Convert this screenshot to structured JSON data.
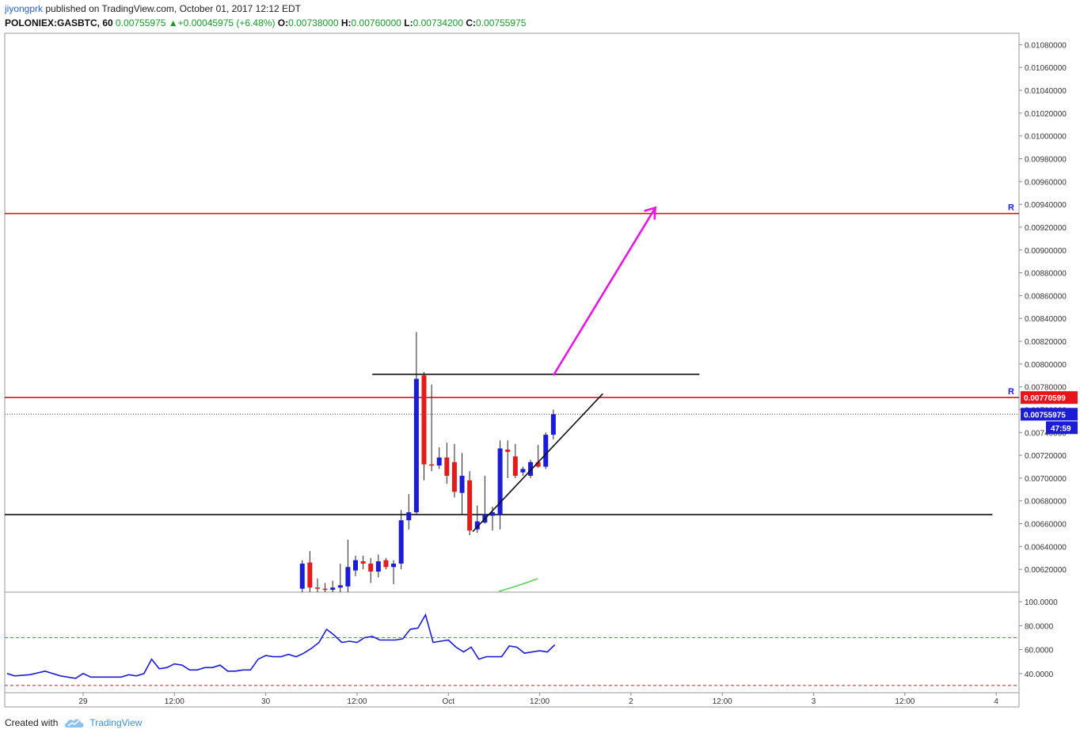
{
  "header": {
    "user": "jiyongprk",
    "published": " published on TradingView.com, October 01, 2017 12:12 EDT"
  },
  "ohlc_line": {
    "symbol": "POLONIEX:GASBTC, 60",
    "last": "0.00755975",
    "change": "+0.00045975 (+6.48%)",
    "o_label": "O:",
    "o": "0.00738000",
    "h_label": "H:",
    "h": "0.00760000",
    "l_label": "L:",
    "l": "0.00734200",
    "c_label": "C:",
    "c": "0.00755975"
  },
  "footer": {
    "created": "Created with",
    "brand": "TradingView"
  },
  "colors": {
    "up": "#1c1cd6",
    "down": "#e01c1c",
    "resistance": "#e8141c",
    "arrow": "#e617e6",
    "rsi": "#1c1cd6",
    "rsi_upper": "#2db52d",
    "rsi_lower": "#d8202a"
  },
  "chart_data": {
    "type": "candlestick",
    "symbol": "POLONIEX:GASBTC",
    "interval": "60",
    "price_axis": {
      "ylim": [
        0.006,
        0.0109
      ],
      "ticks": [
        "0.00620000",
        "0.00640000",
        "0.00660000",
        "0.00680000",
        "0.00700000",
        "0.00720000",
        "0.00740000",
        "0.00760000",
        "0.00780000",
        "0.00800000",
        "0.00820000",
        "0.00840000",
        "0.00860000",
        "0.00880000",
        "0.00900000",
        "0.00920000",
        "0.00940000",
        "0.00960000",
        "0.00980000",
        "0.01000000",
        "0.01020000",
        "0.01040000",
        "0.01060000",
        "0.01080000"
      ]
    },
    "time_axis": {
      "labels": [
        "29",
        "12:00",
        "30",
        "12:00",
        "Oct",
        "12:00",
        "2",
        "12:00",
        "3",
        "12:00",
        "4"
      ],
      "label_hours": [
        0,
        12,
        24,
        36,
        48,
        60,
        72,
        84,
        96,
        108,
        120
      ],
      "xlim_hours": [
        -10.3,
        123
      ]
    },
    "candles": [
      {
        "t": 28.8,
        "o": 0.00603,
        "h": 0.00628,
        "l": 0.006,
        "c": 0.00625
      },
      {
        "t": 29.8,
        "o": 0.00626,
        "h": 0.00636,
        "l": 0.006,
        "c": 0.00604
      },
      {
        "t": 30.8,
        "o": 0.00604,
        "h": 0.00612,
        "l": 0.006,
        "c": 0.00603
      },
      {
        "t": 31.8,
        "o": 0.00603,
        "h": 0.00608,
        "l": 0.006,
        "c": 0.00602
      },
      {
        "t": 32.8,
        "o": 0.00602,
        "h": 0.0061,
        "l": 0.006,
        "c": 0.00604
      },
      {
        "t": 33.8,
        "o": 0.00604,
        "h": 0.00625,
        "l": 0.006,
        "c": 0.00606
      },
      {
        "t": 34.8,
        "o": 0.00605,
        "h": 0.00646,
        "l": 0.006,
        "c": 0.00622
      },
      {
        "t": 35.8,
        "o": 0.00619,
        "h": 0.00632,
        "l": 0.00614,
        "c": 0.00628
      },
      {
        "t": 36.8,
        "o": 0.00627,
        "h": 0.00632,
        "l": 0.0062,
        "c": 0.00625
      },
      {
        "t": 37.8,
        "o": 0.00625,
        "h": 0.0063,
        "l": 0.00608,
        "c": 0.00618
      },
      {
        "t": 38.8,
        "o": 0.00618,
        "h": 0.00633,
        "l": 0.00613,
        "c": 0.00627
      },
      {
        "t": 39.8,
        "o": 0.00628,
        "h": 0.0063,
        "l": 0.0062,
        "c": 0.00622
      },
      {
        "t": 40.8,
        "o": 0.00622,
        "h": 0.00628,
        "l": 0.00607,
        "c": 0.00625
      },
      {
        "t": 41.8,
        "o": 0.00625,
        "h": 0.00672,
        "l": 0.0062,
        "c": 0.00663
      },
      {
        "t": 42.8,
        "o": 0.00663,
        "h": 0.00686,
        "l": 0.00655,
        "c": 0.0067
      },
      {
        "t": 43.8,
        "o": 0.0067,
        "h": 0.00828,
        "l": 0.00668,
        "c": 0.00787
      },
      {
        "t": 44.8,
        "o": 0.0079,
        "h": 0.00793,
        "l": 0.00698,
        "c": 0.00712
      },
      {
        "t": 45.8,
        "o": 0.00712,
        "h": 0.00782,
        "l": 0.00706,
        "c": 0.00711
      },
      {
        "t": 46.8,
        "o": 0.00711,
        "h": 0.00727,
        "l": 0.00708,
        "c": 0.00718
      },
      {
        "t": 47.8,
        "o": 0.00718,
        "h": 0.00731,
        "l": 0.00695,
        "c": 0.00702
      },
      {
        "t": 48.8,
        "o": 0.00714,
        "h": 0.0073,
        "l": 0.00683,
        "c": 0.00688
      },
      {
        "t": 49.8,
        "o": 0.00687,
        "h": 0.00722,
        "l": 0.00668,
        "c": 0.00702
      },
      {
        "t": 50.8,
        "o": 0.00698,
        "h": 0.00706,
        "l": 0.0065,
        "c": 0.00654
      },
      {
        "t": 51.8,
        "o": 0.00655,
        "h": 0.00676,
        "l": 0.00652,
        "c": 0.00662
      },
      {
        "t": 52.8,
        "o": 0.00661,
        "h": 0.00702,
        "l": 0.0066,
        "c": 0.00668
      },
      {
        "t": 53.8,
        "o": 0.00667,
        "h": 0.00675,
        "l": 0.00654,
        "c": 0.0067
      },
      {
        "t": 54.8,
        "o": 0.00668,
        "h": 0.00733,
        "l": 0.00655,
        "c": 0.00726
      },
      {
        "t": 55.8,
        "o": 0.00725,
        "h": 0.00733,
        "l": 0.007,
        "c": 0.00723
      },
      {
        "t": 56.8,
        "o": 0.00719,
        "h": 0.0073,
        "l": 0.007,
        "c": 0.00702
      },
      {
        "t": 57.8,
        "o": 0.00705,
        "h": 0.0071,
        "l": 0.00702,
        "c": 0.00708
      },
      {
        "t": 58.8,
        "o": 0.00702,
        "h": 0.00716,
        "l": 0.007,
        "c": 0.00714
      },
      {
        "t": 59.8,
        "o": 0.00714,
        "h": 0.00729,
        "l": 0.00709,
        "c": 0.0071
      },
      {
        "t": 60.8,
        "o": 0.0071,
        "h": 0.0074,
        "l": 0.00708,
        "c": 0.00738
      },
      {
        "t": 61.8,
        "o": 0.00738,
        "h": 0.0076,
        "l": 0.00734,
        "c": 0.00756
      }
    ],
    "horizontal_levels": [
      {
        "kind": "resistance",
        "price": 0.00932,
        "label": "R"
      },
      {
        "kind": "resistance",
        "price": 0.0077059,
        "label": "R",
        "tag": "0.00770599"
      },
      {
        "kind": "support",
        "price": 0.00668
      },
      {
        "kind": "resistance",
        "price": 0.00791
      }
    ],
    "current_price": {
      "price": 0.00755975,
      "tag": "0.00755975",
      "countdown": "47:59"
    },
    "trendline": {
      "from": {
        "t": 51.2,
        "price": 0.00653
      },
      "to": {
        "t": 68.3,
        "price": 0.00774
      }
    },
    "projection_arrow": {
      "from": {
        "t": 61.8,
        "price": 0.0079
      },
      "to": {
        "t": 75.2,
        "price": 0.00937
      }
    },
    "rsi": {
      "ylim": [
        24,
        108
      ],
      "ticks": [
        "40.0000",
        "60.0000",
        "80.0000",
        "100.0000"
      ],
      "upper": 70,
      "lower": 30,
      "x_hours": [
        -10,
        -9,
        -7,
        -5,
        -3,
        -1,
        0,
        1,
        2,
        3,
        4,
        5,
        6,
        7,
        8,
        9,
        10,
        11,
        12,
        13,
        14,
        15,
        16,
        17,
        18,
        19,
        20,
        21,
        22,
        23,
        24,
        25,
        26,
        27,
        28,
        29,
        30,
        31,
        32,
        33,
        34,
        35,
        36,
        37,
        38,
        39,
        40,
        41,
        42,
        43,
        44,
        45,
        46,
        47,
        48,
        49,
        50,
        51,
        52,
        53,
        54,
        55,
        56,
        57,
        58,
        59,
        60,
        61,
        62
      ],
      "values": [
        40,
        38,
        39,
        42,
        38,
        36,
        40,
        37,
        37,
        37,
        37,
        37,
        39,
        38,
        40,
        52,
        44,
        45,
        48,
        47,
        43,
        43,
        45,
        45,
        47,
        42,
        42,
        43,
        43,
        52,
        55,
        54,
        54,
        56,
        54,
        57,
        61,
        66,
        77,
        72,
        66,
        67,
        66,
        70,
        71,
        68,
        68,
        68,
        69,
        77,
        78,
        89,
        66,
        67,
        68,
        62,
        58,
        62,
        52,
        54,
        54,
        54,
        63,
        62,
        57,
        58,
        59,
        58,
        64
      ]
    }
  }
}
